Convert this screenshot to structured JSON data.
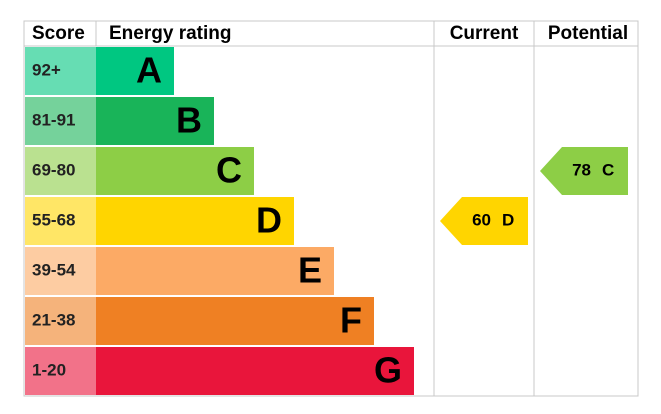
{
  "header": {
    "score": "Score",
    "rating": "Energy rating",
    "current": "Current",
    "potential": "Potential"
  },
  "bands": [
    {
      "range": "92+",
      "letter": "A",
      "color": "#00c781"
    },
    {
      "range": "81-91",
      "letter": "B",
      "color": "#19b459"
    },
    {
      "range": "69-80",
      "letter": "C",
      "color": "#8dce46"
    },
    {
      "range": "55-68",
      "letter": "D",
      "color": "#ffd500"
    },
    {
      "range": "39-54",
      "letter": "E",
      "color": "#fcaa65"
    },
    {
      "range": "21-38",
      "letter": "F",
      "color": "#ef8023"
    },
    {
      "range": "1-20",
      "letter": "G",
      "color": "#e9153b"
    }
  ],
  "current": {
    "value": 60,
    "letter": "D"
  },
  "potential": {
    "value": 78,
    "letter": "C"
  }
}
